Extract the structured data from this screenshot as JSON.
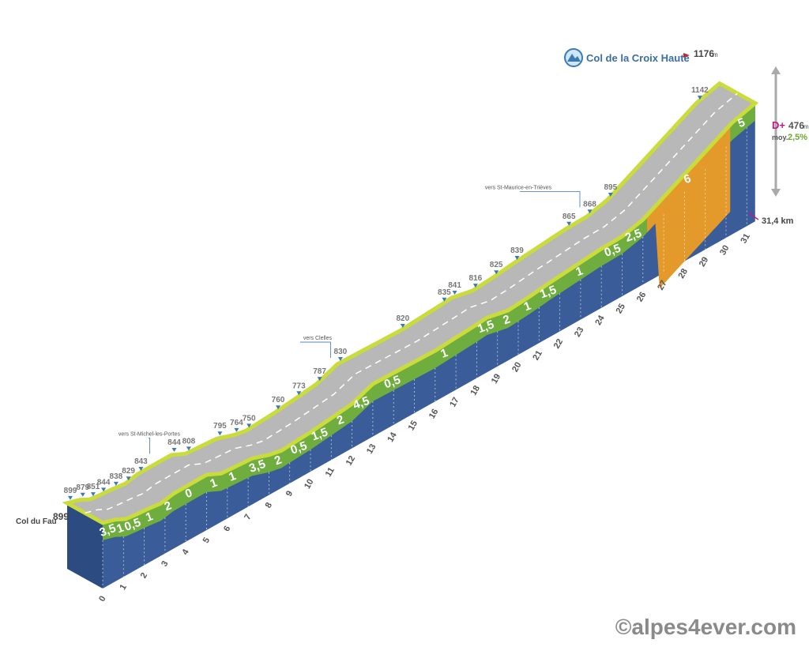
{
  "start": {
    "name": "Col du Fau",
    "altitude": 899
  },
  "summit": {
    "name": "Col de la Croix Haute",
    "altitude": 1176,
    "unit": "m"
  },
  "stats": {
    "gain_label": "D+",
    "gain": 476,
    "gain_unit": "m",
    "average_label": "moy.",
    "average": "2,5%",
    "length": "31,4 km"
  },
  "side_roads": [
    "vers St-Michel-les-Portes",
    "vers Clelles",
    "vers St-Maurice-en-Trièves"
  ],
  "altitudes": [
    899,
    879,
    851,
    844,
    838,
    829,
    843,
    844,
    808,
    795,
    764,
    750,
    760,
    773,
    787,
    830,
    820,
    835,
    841,
    816,
    825,
    839,
    865,
    868,
    895,
    1142
  ],
  "km_labels": [
    0,
    1,
    2,
    3,
    4,
    5,
    6,
    7,
    8,
    9,
    10,
    11,
    12,
    13,
    14,
    15,
    16,
    17,
    18,
    19,
    20,
    21,
    22,
    23,
    24,
    25,
    26,
    27,
    28,
    29,
    30,
    31
  ],
  "gradients": [
    "3,5",
    "1",
    "0,5",
    "1",
    "2",
    "0",
    "1",
    "1",
    "3,5",
    "2",
    "0,5",
    "1,5",
    "2",
    "4,5",
    "0,5",
    "1",
    "1,5",
    "2",
    "1",
    "1,5",
    "1",
    "0,5",
    "2,5",
    "6",
    "5"
  ],
  "copyright": "©alpes4ever.com"
}
